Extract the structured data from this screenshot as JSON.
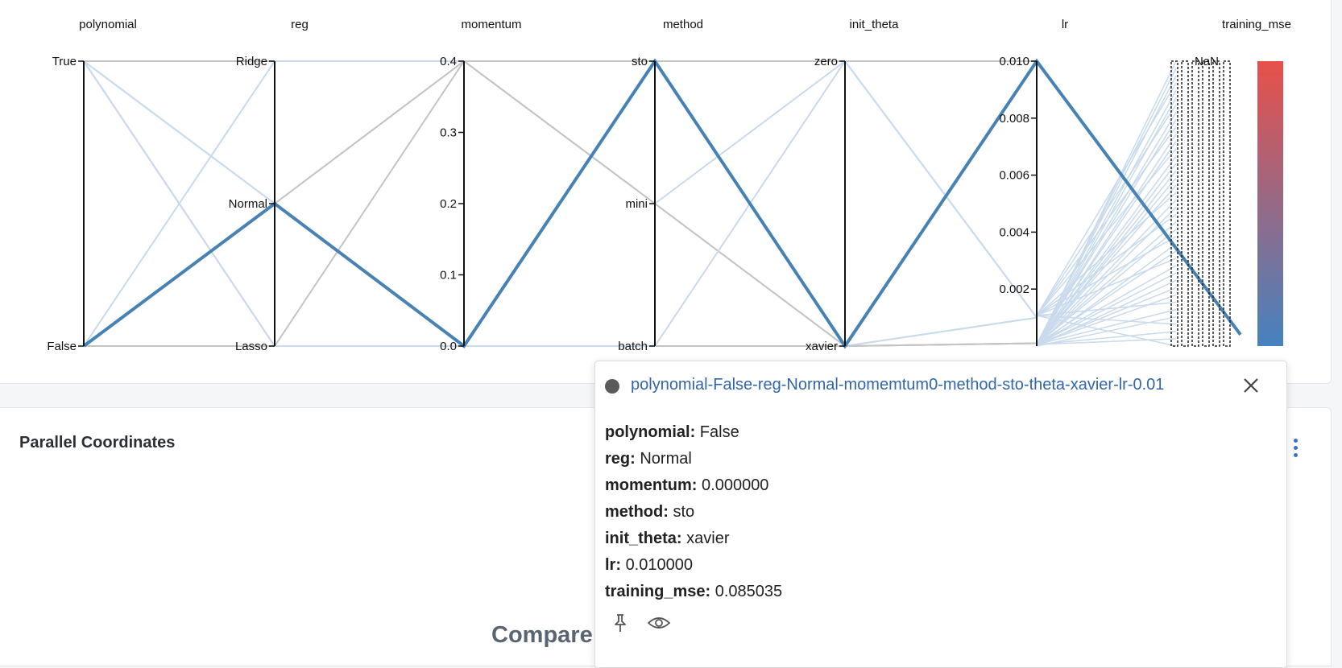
{
  "panel": {
    "title": "Parallel Coordinates",
    "compare_text": "Compare"
  },
  "chart_data": {
    "type": "parallel-coordinates",
    "dimensions": [
      {
        "name": "polynomial",
        "kind": "categorical",
        "ticks": [
          "True",
          "False"
        ]
      },
      {
        "name": "reg",
        "kind": "categorical",
        "ticks": [
          "Ridge",
          "Normal",
          "Lasso"
        ]
      },
      {
        "name": "momentum",
        "kind": "numeric",
        "range": [
          0.0,
          0.4
        ],
        "ticks": [
          "0.4",
          "0.3",
          "0.2",
          "0.1",
          "0.0"
        ]
      },
      {
        "name": "method",
        "kind": "categorical",
        "ticks": [
          "sto",
          "mini",
          "batch"
        ]
      },
      {
        "name": "init_theta",
        "kind": "categorical",
        "ticks": [
          "zero",
          "xavier"
        ]
      },
      {
        "name": "lr",
        "kind": "numeric",
        "range": [
          0.0,
          0.01
        ],
        "ticks": [
          "0.010",
          "0.008",
          "0.006",
          "0.004",
          "0.002"
        ]
      },
      {
        "name": "training_mse",
        "kind": "color-scale",
        "ticks": [
          "NaN"
        ]
      }
    ],
    "color_scale": {
      "high": "#e8504a",
      "low": "#4682c0"
    },
    "line_colors": {
      "highlight": "#4682b4",
      "faint": "#c8daec",
      "gray": "#c4c4c4"
    },
    "highlighted_run": {
      "polynomial": "False",
      "reg": "Normal",
      "momentum": 0.0,
      "method": "sto",
      "init_theta": "xavier",
      "lr": 0.01,
      "training_mse": 0.085035
    }
  },
  "tooltip": {
    "run_name": "polynomial-False-reg-Normal-momemtum0-method-sto-theta-xavier-lr-0.01",
    "fields": [
      {
        "key": "polynomial:",
        "value": "False"
      },
      {
        "key": "reg:",
        "value": "Normal"
      },
      {
        "key": "momentum:",
        "value": "0.000000"
      },
      {
        "key": "method:",
        "value": "sto"
      },
      {
        "key": "init_theta:",
        "value": "xavier"
      },
      {
        "key": "lr:",
        "value": "0.010000"
      },
      {
        "key": "training_mse:",
        "value": "0.085035"
      }
    ],
    "actions": [
      "pin-icon",
      "eye-icon"
    ]
  }
}
